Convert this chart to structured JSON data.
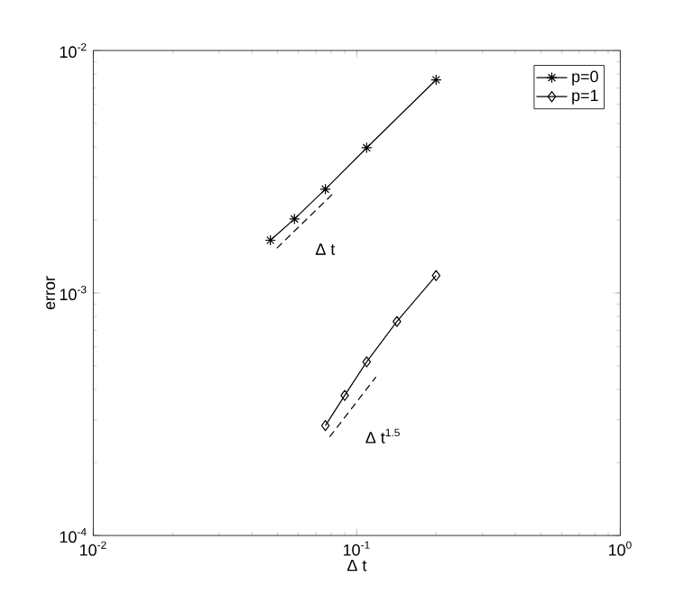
{
  "chart_data": {
    "type": "line",
    "xlabel": "Δ t",
    "ylabel": "error",
    "log": "xy",
    "grid": false,
    "legend": "top right",
    "xlim": [
      0.01,
      1
    ],
    "ylim": [
      0.0001,
      0.01
    ],
    "xticks": [
      {
        "value": 0.01,
        "label": "10$^{-2}$"
      },
      {
        "value": 0.1,
        "label": "10$^{-1}$"
      },
      {
        "value": 1,
        "label": "10$^{0}$"
      }
    ],
    "yticks": [
      {
        "value": 0.0001,
        "label": "10$^{-4}$"
      },
      {
        "value": 0.001,
        "label": "10$^{-3}$"
      },
      {
        "value": 0.01,
        "label": "10$^{-2}$"
      }
    ],
    "series": [
      {
        "name": "p=0",
        "color": "#000000",
        "marker": "cross",
        "line_style": "solid",
        "x": [
          0.047,
          0.058,
          0.076,
          0.109,
          0.2
        ],
        "values": [
          0.00165,
          0.00202,
          0.00268,
          0.00397,
          0.00757
        ]
      },
      {
        "name": "p=1",
        "color": "#000000",
        "marker": "diamond",
        "line_style": "solid",
        "x": [
          0.076,
          0.09,
          0.109,
          0.142,
          0.2
        ],
        "values": [
          0.000284,
          0.000378,
          0.00052,
          0.000763,
          0.00118
        ]
      },
      {
        "color": "#000000",
        "marker": "none",
        "line_style": "dashed",
        "x": [
          0.0497,
          0.0822
        ],
        "values": [
          0.00153,
          0.0026
        ]
      },
      {
        "color": "#000000",
        "marker": "none",
        "line_style": "dashed",
        "x": [
          0.0789,
          0.1183
        ],
        "values": [
          0.000255,
          0.000451
        ]
      }
    ],
    "annotations": [
      "Δ t",
      "Δ t$^{1.5}$"
    ]
  }
}
